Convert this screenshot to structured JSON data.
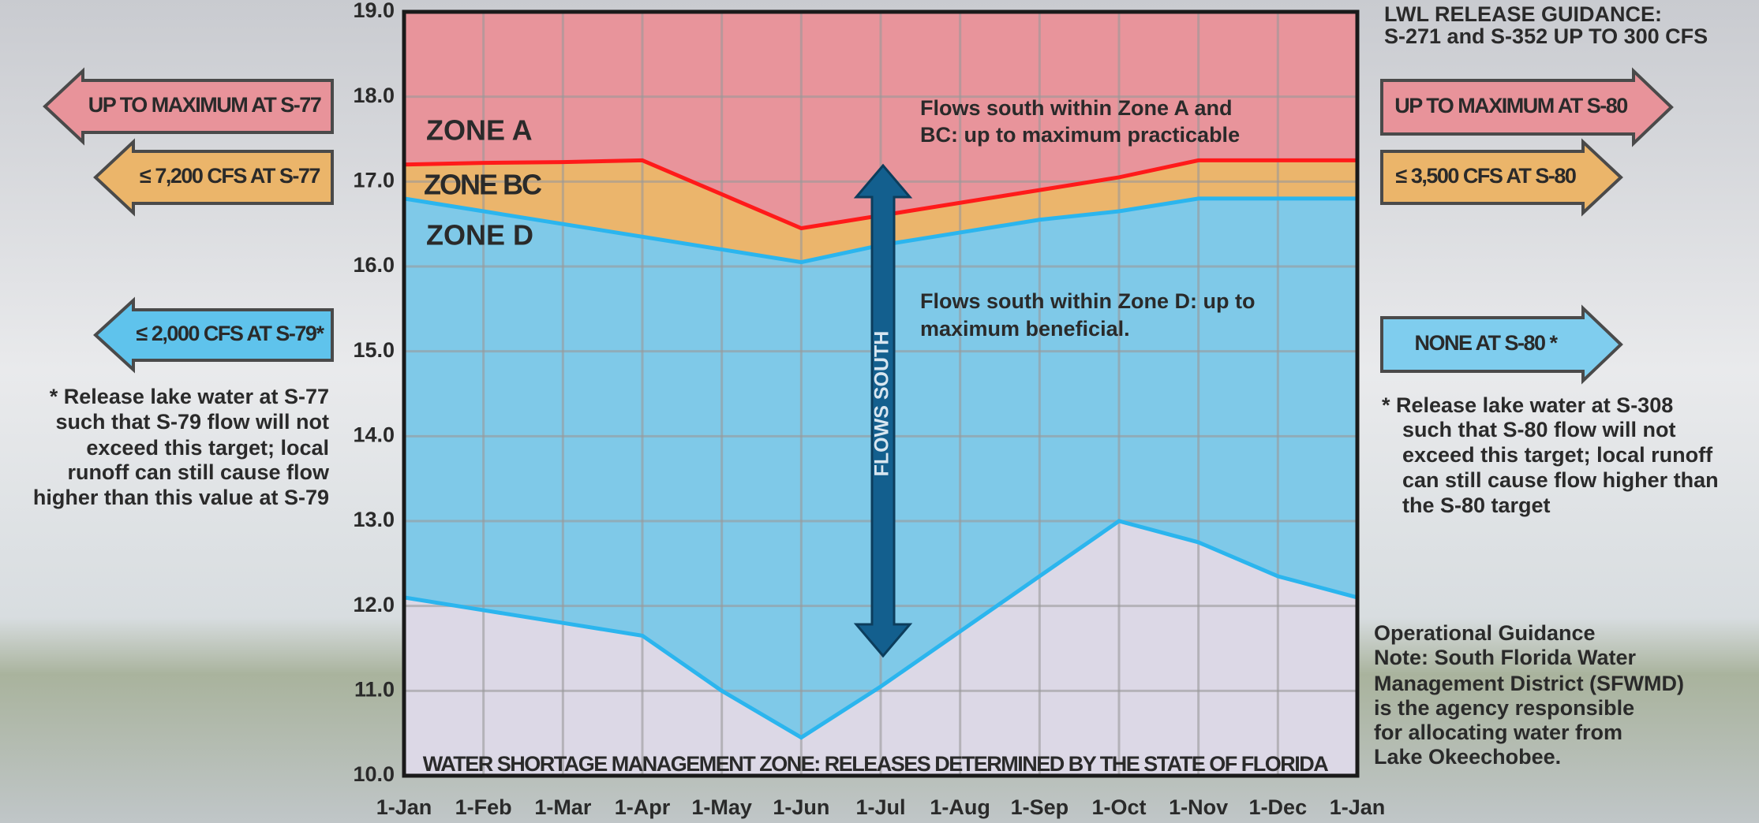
{
  "chart_data": {
    "type": "zones",
    "categories": [
      "1-Jan",
      "1-Feb",
      "1-Mar",
      "1-Apr",
      "1-May",
      "1-Jun",
      "1-Jul",
      "1-Aug",
      "1-Sep",
      "1-Oct",
      "1-Nov",
      "1-Dec",
      "1-Jan"
    ],
    "ylim": [
      10,
      19
    ],
    "yticks": [
      {
        "value": 10,
        "label": "10.0"
      },
      {
        "value": 11,
        "label": "11.0"
      },
      {
        "value": 12,
        "label": "12.0"
      },
      {
        "value": 13,
        "label": "13.0"
      },
      {
        "value": 14,
        "label": "14.0"
      },
      {
        "value": 15,
        "label": "15.0"
      },
      {
        "value": 16,
        "label": "16.0"
      },
      {
        "value": 17,
        "label": "17.0"
      },
      {
        "value": 18,
        "label": "18.0"
      },
      {
        "value": 19,
        "label": "19.0"
      }
    ],
    "grid": true,
    "top_fill": "#e8949b",
    "series": [
      {
        "color": "#ff1a1a",
        "fill": "#ebb56c",
        "values": [
          17.2,
          17.22,
          17.23,
          17.25,
          16.85,
          16.45,
          16.6,
          16.75,
          16.9,
          17.05,
          17.25,
          17.25,
          17.25
        ]
      },
      {
        "color": "#2bb5ee",
        "fill": "#7fc9e8",
        "values": [
          16.8,
          16.65,
          16.5,
          16.35,
          16.2,
          16.05,
          16.25,
          16.4,
          16.55,
          16.65,
          16.8,
          16.8,
          16.8
        ]
      },
      {
        "color": "#2bb5ee",
        "fill": "#dcd8e6",
        "values": [
          12.1,
          11.95,
          11.8,
          11.65,
          11.0,
          10.45,
          11.05,
          11.7,
          12.35,
          13.0,
          12.75,
          12.35,
          12.1
        ]
      }
    ],
    "zone_labels": [
      "ZONE A",
      "ZONE BC",
      "ZONE D"
    ],
    "annotations": {
      "zone_a": [
        "Flows south within Zone A and",
        "BC: up to maximum practicable"
      ],
      "zone_d": [
        "Flows south within Zone D: up to",
        "maximum beneficial."
      ],
      "flows_south": "FLOWS SOUTH",
      "shortage": "WATER SHORTAGE MANAGEMENT ZONE: RELEASES DETERMINED BY THE STATE OF FLORIDA"
    },
    "left_arrows": [
      "UP TO MAXIMUM AT S-77",
      "≤ 7,200 CFS AT S-77",
      "≤ 2,000 CFS AT S-79*"
    ],
    "right_arrows": [
      "UP TO MAXIMUM AT S-80",
      "≤ 3,500 CFS AT S-80",
      "NONE AT S-80 *"
    ],
    "lwl_guidance": [
      "LWL RELEASE GUIDANCE:",
      "S-271 and S-352 UP TO 300 CFS"
    ],
    "left_note": [
      "* Release lake water at S-77",
      "such that S-79 flow will not",
      "exceed this target; local",
      "runoff can still cause flow",
      "higher than this value at S-79"
    ],
    "right_note": [
      "* Release lake water at S-308",
      "such that S-80 flow will not",
      "exceed this target; local runoff",
      "can still cause flow higher than",
      "the S-80 target"
    ],
    "operational_note": [
      "Operational Guidance",
      "Note:  South Florida Water",
      "Management District (SFWMD)",
      "is the agency responsible",
      "for allocating water from",
      "Lake Okeechobee."
    ]
  }
}
